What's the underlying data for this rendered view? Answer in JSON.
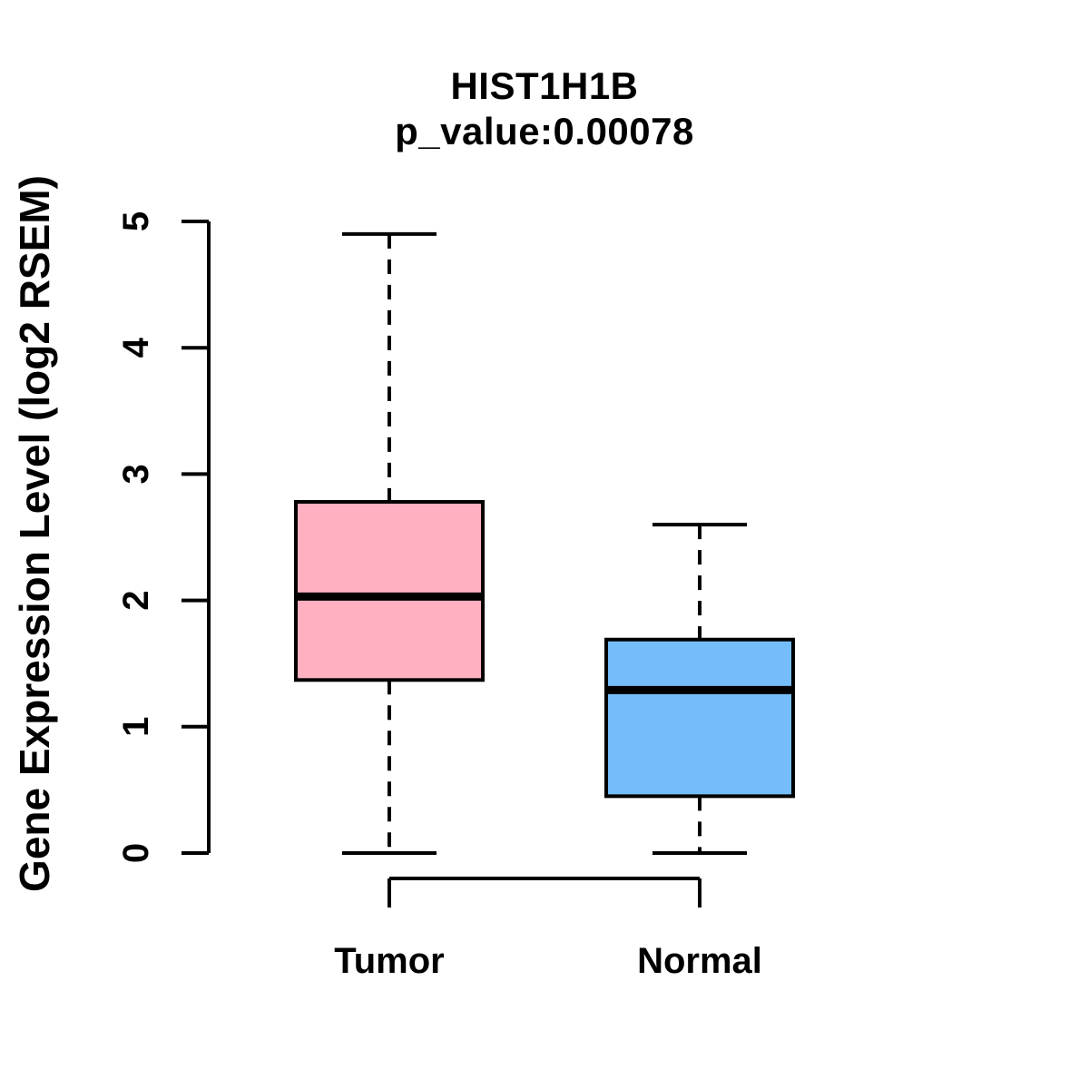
{
  "chart_data": {
    "type": "boxplot",
    "title": "HIST1H1B",
    "subtitle": "p_value:0.00078",
    "ylabel": "Gene Expression Level (log2 RSEM)",
    "xlabel": "",
    "ylim": [
      0,
      5
    ],
    "yticks": [
      0,
      1,
      2,
      3,
      4,
      5
    ],
    "grid": false,
    "legend": "none",
    "groups": [
      {
        "label": "Tumor",
        "fill_color": "#FFB1C1",
        "whisker_low": 0,
        "q1": 1.37,
        "median": 2.03,
        "q3": 2.78,
        "whisker_high": 4.9
      },
      {
        "label": "Normal",
        "fill_color": "#74BDF8",
        "whisker_low": 0,
        "q1": 0.45,
        "median": 1.29,
        "q3": 1.69,
        "whisker_high": 2.6
      }
    ],
    "style": {
      "box_border_color": "#000000",
      "median_color": "#000000",
      "whisker_color": "#000000",
      "whisker_style": "dashed",
      "background": "#FFFFFF"
    }
  }
}
